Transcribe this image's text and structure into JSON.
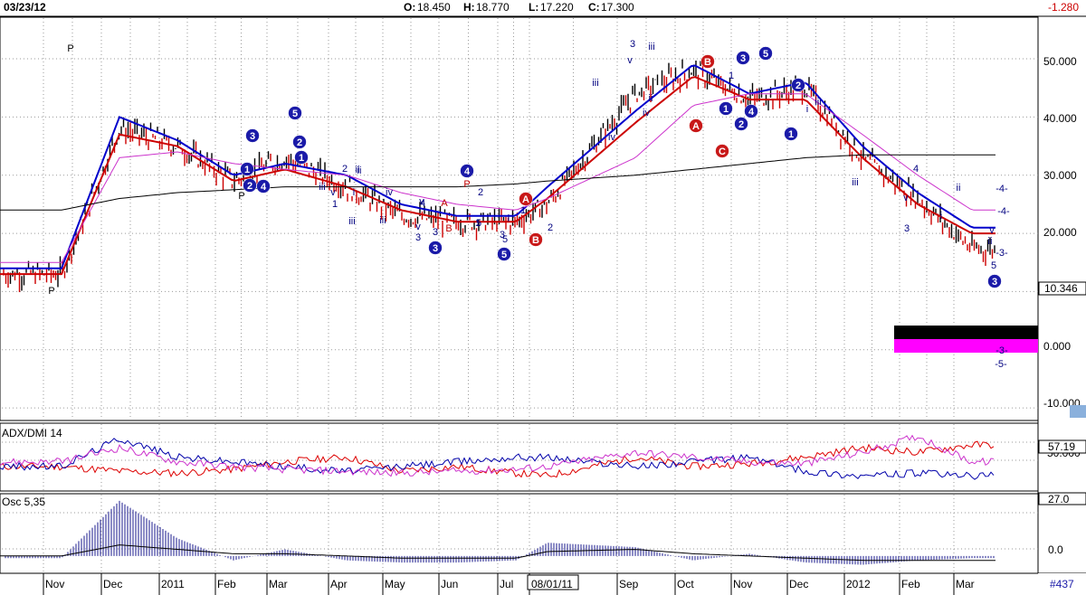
{
  "header": {
    "date": "03/23/12",
    "open_label": "O:",
    "open": "18.450",
    "high_label": "H:",
    "high": "18.770",
    "low_label": "L:",
    "low": "17.220",
    "close_label": "C:",
    "close": "17.300",
    "change": "-1.280"
  },
  "price_axis": {
    "ticks": [
      "50.000",
      "40.000",
      "30.000",
      "20.000",
      "0.000",
      "-10.000"
    ],
    "last_price_box": "10.346"
  },
  "x_axis": {
    "labels": [
      "Nov",
      "Dec",
      "2011",
      "Feb",
      "Mar",
      "Apr",
      "May",
      "Jun",
      "Jul",
      "08/01/11",
      "Sep",
      "Oct",
      "Nov",
      "Dec",
      "2012",
      "Feb",
      "Mar"
    ],
    "bar_count_label": "#437"
  },
  "panels": {
    "adx": {
      "title": "ADX/DMI 14",
      "value_box": "57.19",
      "ref_tick": "50.000"
    },
    "osc": {
      "title": "Osc 5,35",
      "top_box": "27.0",
      "zero_tick": "0.0"
    }
  },
  "wave_labels": [
    {
      "t": "P",
      "c": "#000"
    },
    {
      "t": "P",
      "c": "#000"
    },
    {
      "t": "P",
      "c": "#000"
    },
    {
      "t": "P",
      "c": "#c00000"
    },
    {
      "t": "iii",
      "c": "#000080"
    },
    {
      "t": "3",
      "c": "#000080"
    },
    {
      "t": "v",
      "c": "#000080"
    },
    {
      "t": "ii",
      "c": "#000080"
    },
    {
      "t": "iii",
      "c": "#000080"
    },
    {
      "t": "v",
      "c": "#000080"
    },
    {
      "t": "1",
      "c": "#000080"
    },
    {
      "t": "2",
      "c": "#000080"
    },
    {
      "t": "ii",
      "c": "#000080"
    },
    {
      "t": "i",
      "c": "#000080"
    },
    {
      "t": "iv",
      "c": "#000080"
    },
    {
      "t": "iii",
      "c": "#000080"
    },
    {
      "t": "v",
      "c": "#000080"
    },
    {
      "t": "3",
      "c": "#000080"
    },
    {
      "t": "4",
      "c": "#000080"
    },
    {
      "t": "5",
      "c": "#000080"
    },
    {
      "t": "A",
      "c": "#c00000"
    },
    {
      "t": "B",
      "c": "#c00000"
    },
    {
      "t": "2",
      "c": "#000080"
    },
    {
      "t": "1",
      "c": "#000080"
    },
    {
      "t": "i",
      "c": "#000080"
    },
    {
      "t": "3",
      "c": "#000080"
    },
    {
      "t": "5",
      "c": "#000080"
    },
    {
      "t": "1",
      "c": "#000080"
    },
    {
      "t": "2",
      "c": "#000080"
    },
    {
      "t": "iii",
      "c": "#000080"
    },
    {
      "t": "iv",
      "c": "#000080"
    },
    {
      "t": "3",
      "c": "#000080"
    },
    {
      "t": "v",
      "c": "#000080"
    },
    {
      "t": "iii",
      "c": "#000080"
    },
    {
      "t": "iv",
      "c": "#000080"
    },
    {
      "t": "ii",
      "c": "#000080"
    },
    {
      "t": "1",
      "c": "#000080"
    },
    {
      "t": "i",
      "c": "#000080"
    },
    {
      "t": "iii",
      "c": "#000080"
    },
    {
      "t": "v",
      "c": "#000080"
    },
    {
      "t": "3",
      "c": "#000080"
    },
    {
      "t": "4",
      "c": "#000080"
    },
    {
      "t": "i",
      "c": "#000080"
    },
    {
      "t": "ii",
      "c": "#000080"
    },
    {
      "t": "ii",
      "c": "#000080"
    },
    {
      "t": "-4-",
      "c": "#000080"
    },
    {
      "t": "-4-",
      "c": "#000080"
    },
    {
      "t": "-3-",
      "c": "#000080"
    },
    {
      "t": "v",
      "c": "#000080"
    },
    {
      "t": "5",
      "c": "#000080"
    },
    {
      "t": "-3-",
      "c": "#000080"
    },
    {
      "t": "-5-",
      "c": "#000080"
    },
    {
      "t": "iii",
      "c": "#000080"
    }
  ],
  "circled_labels": [
    {
      "t": "3",
      "c": "#1a1aa8"
    },
    {
      "t": "5",
      "c": "#1a1aa8"
    },
    {
      "t": "1",
      "c": "#1a1aa8"
    },
    {
      "t": "2",
      "c": "#1a1aa8"
    },
    {
      "t": "2",
      "c": "#1a1aa8"
    },
    {
      "t": "4",
      "c": "#1a1aa8"
    },
    {
      "t": "1",
      "c": "#1a1aa8"
    },
    {
      "t": "3",
      "c": "#1a1aa8"
    },
    {
      "t": "4",
      "c": "#1a1aa8"
    },
    {
      "t": "5",
      "c": "#1a1aa8"
    },
    {
      "t": "A",
      "c": "#c81818"
    },
    {
      "t": "B",
      "c": "#c81818"
    },
    {
      "t": "A",
      "c": "#c81818"
    },
    {
      "t": "B",
      "c": "#c81818"
    },
    {
      "t": "C",
      "c": "#c81818"
    },
    {
      "t": "3",
      "c": "#1a1aa8"
    },
    {
      "t": "5",
      "c": "#1a1aa8"
    },
    {
      "t": "1",
      "c": "#1a1aa8"
    },
    {
      "t": "2",
      "c": "#1a1aa8"
    },
    {
      "t": "4",
      "c": "#1a1aa8"
    },
    {
      "t": "2",
      "c": "#1a1aa8"
    },
    {
      "t": "1",
      "c": "#1a1aa8"
    },
    {
      "t": "3",
      "c": "#1a1aa8"
    }
  ],
  "colors": {
    "grid": "#9a9a9a",
    "bull_bar": "#000000",
    "bear_bar": "#cc0000",
    "fast_avg": "#0000cc",
    "slow_avg": "#cc0000",
    "ma_magenta": "#cc33cc",
    "ma_black": "#000000",
    "adx_red": "#dd0000",
    "adx_blue": "#0000aa",
    "adx_magenta": "#cc33cc",
    "osc_hist": "#1a1a8c",
    "osc_line": "#000000",
    "zone_black": "#000000",
    "zone_magenta": "#ff00ff"
  },
  "chart_data": [
    {
      "type": "line",
      "title": "",
      "x": [
        "Nov",
        "Dec",
        "2011",
        "Feb",
        "Mar",
        "Apr",
        "May",
        "Jun",
        "Jul",
        "Aug",
        "Sep",
        "Oct",
        "Nov",
        "Dec",
        "2012",
        "Feb",
        "Mar"
      ],
      "ylim": [
        -12,
        57
      ],
      "series": [
        {
          "name": "Close",
          "values": [
            13,
            38,
            35,
            29,
            33,
            28,
            23,
            22,
            22,
            25,
            44,
            48,
            43,
            45,
            33,
            26,
            17.3
          ]
        },
        {
          "name": "",
          "values": [
            14,
            40,
            36,
            30,
            32,
            30,
            25,
            23,
            23,
            28,
            41,
            49,
            44,
            46,
            35,
            27,
            21
          ]
        },
        {
          "name": "",
          "values": [
            13,
            37,
            35,
            29,
            31,
            28,
            24,
            22,
            22,
            26,
            39,
            47,
            43,
            43,
            33,
            25,
            20
          ]
        },
        {
          "name": "",
          "values": [
            15,
            33,
            34,
            32,
            31,
            30,
            27,
            25,
            24,
            26,
            33,
            42,
            44,
            44,
            37,
            30,
            24
          ]
        },
        {
          "name": "",
          "values": [
            24,
            26,
            27,
            27.5,
            28,
            28,
            28,
            28,
            28.5,
            29,
            30,
            31,
            32,
            33,
            33.5,
            33.5,
            33.5
          ]
        }
      ]
    },
    {
      "type": "line",
      "title": "ADX/DMI 14",
      "x": [
        "Nov",
        "Dec",
        "2011",
        "Feb",
        "Mar",
        "Apr",
        "May",
        "Jun",
        "Jul",
        "Aug",
        "Sep",
        "Oct",
        "Nov",
        "Dec",
        "2012",
        "Feb",
        "Mar"
      ],
      "ylim": [
        0,
        70
      ],
      "series": [
        {
          "name": "",
          "values": [
            25,
            20,
            18,
            22,
            30,
            35,
            20,
            25,
            18,
            15,
            35,
            25,
            28,
            35,
            45,
            40,
            48
          ]
        },
        {
          "name": "",
          "values": [
            25,
            55,
            35,
            30,
            25,
            20,
            25,
            30,
            35,
            35,
            25,
            30,
            35,
            20,
            15,
            18,
            15
          ]
        },
        {
          "name": "",
          "values": [
            30,
            45,
            30,
            25,
            22,
            20,
            18,
            20,
            22,
            25,
            40,
            35,
            30,
            28,
            40,
            57.19,
            30
          ]
        }
      ]
    },
    {
      "type": "bar",
      "title": "Osc 5,35",
      "categories": [
        "Nov",
        "Dec",
        "2011",
        "Feb",
        "Mar",
        "Apr",
        "May",
        "Jun",
        "Jul",
        "Aug",
        "Sep",
        "Oct",
        "Nov",
        "Dec",
        "2012",
        "Feb",
        "Mar"
      ],
      "ylim": [
        -5,
        27
      ],
      "series": [
        {
          "name": "",
          "values": [
            -1,
            25,
            8,
            -2,
            3,
            -2,
            -3,
            -3,
            -2,
            6,
            4,
            -2,
            1,
            -3,
            -4,
            -2,
            -1
          ]
        },
        {
          "name": "",
          "values": [
            0,
            5,
            3,
            1,
            1,
            0,
            -1,
            -1,
            -1,
            2,
            3,
            1,
            0,
            -1,
            -2,
            -2,
            -2
          ]
        }
      ]
    }
  ]
}
